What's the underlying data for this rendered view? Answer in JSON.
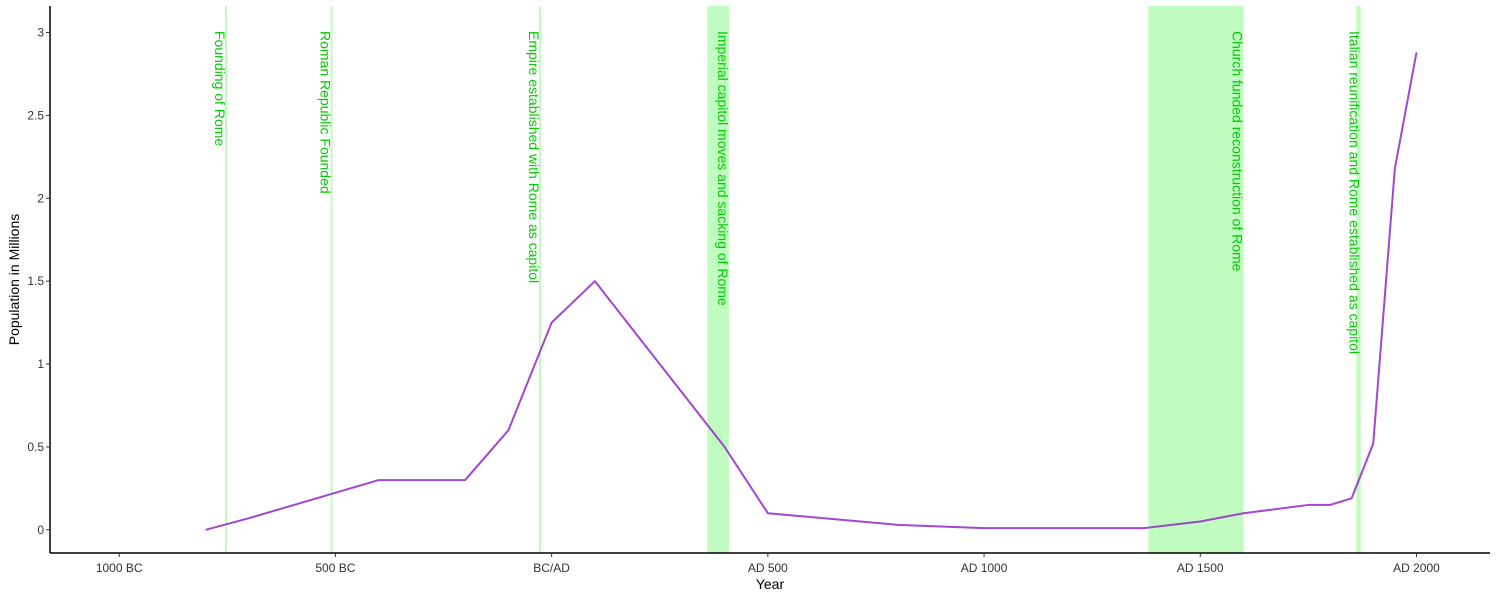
{
  "chart_data": {
    "type": "line",
    "xlabel": "Year",
    "ylabel": "Population in Millions",
    "xlim": [
      -1160,
      2170
    ],
    "ylim": [
      -0.14,
      3.16
    ],
    "x_ticks": [
      {
        "value": -1000,
        "label": "1000 BC"
      },
      {
        "value": -500,
        "label": "500 BC"
      },
      {
        "value": 0,
        "label": "BC/AD"
      },
      {
        "value": 500,
        "label": "AD 500"
      },
      {
        "value": 1000,
        "label": "AD 1000"
      },
      {
        "value": 1500,
        "label": "AD 1500"
      },
      {
        "value": 2000,
        "label": "AD 2000"
      }
    ],
    "y_ticks": [
      {
        "value": 0,
        "label": "0"
      },
      {
        "value": 0.5,
        "label": "0.5"
      },
      {
        "value": 1,
        "label": "1"
      },
      {
        "value": 1.5,
        "label": "1.5"
      },
      {
        "value": 2,
        "label": "2"
      },
      {
        "value": 2.5,
        "label": "2.5"
      },
      {
        "value": 3,
        "label": "3"
      }
    ],
    "series": [
      {
        "color": "#9932CC",
        "x": [
          -800,
          -700,
          -400,
          -200,
          -100,
          0,
          100,
          400,
          500,
          800,
          1000,
          1370,
          1500,
          1600,
          1750,
          1800,
          1850,
          1900,
          1950,
          2000
        ],
        "values": [
          0.0,
          0.07,
          0.3,
          0.3,
          0.6,
          1.25,
          1.5,
          0.5,
          0.1,
          0.03,
          0.01,
          0.01,
          0.05,
          0.1,
          0.15,
          0.15,
          0.19,
          0.52,
          2.18,
          2.88
        ]
      }
    ],
    "events": [
      {
        "start": -753,
        "end": -753,
        "label": "Founding of Rome"
      },
      {
        "start": -509,
        "end": -509,
        "label": "Roman Republic Founded"
      },
      {
        "start": -27,
        "end": -27,
        "label": "Empire established with Rome as capitol"
      },
      {
        "start": 360,
        "end": 410,
        "label": "Imperial capitol moves and sacking of Rome"
      },
      {
        "start": 1380,
        "end": 1600,
        "label": "Church funded reconstruction of Rome"
      },
      {
        "start": 1861,
        "end": 1871,
        "label": "Italian reunification and Rome established as capitol"
      }
    ],
    "event_color": "#00CC00",
    "event_fill": "#C0FBC0",
    "grid": false
  }
}
